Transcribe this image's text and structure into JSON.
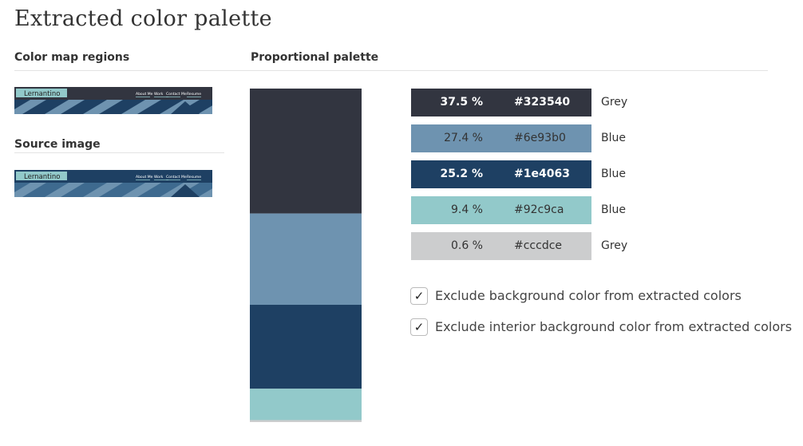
{
  "header": {
    "title": "Extracted color palette"
  },
  "left": {
    "regions_heading": "Color map regions",
    "source_heading": "Source image",
    "thumbnails": [
      {
        "brand": "Lernantino",
        "nav": [
          "About Me",
          "Work",
          "Contact Me",
          "Resume"
        ]
      },
      {
        "brand": "Lernantino",
        "nav": [
          "About Me",
          "Work",
          "Contact Me",
          "Resume"
        ]
      }
    ]
  },
  "palette": {
    "heading": "Proportional palette",
    "rows": [
      {
        "percent": 37.5,
        "percent_label": "37.5 %",
        "hex": "#323540",
        "name": "Grey"
      },
      {
        "percent": 27.4,
        "percent_label": "27.4 %",
        "hex": "#6e93b0",
        "name": "Blue"
      },
      {
        "percent": 25.2,
        "percent_label": "25.2 %",
        "hex": "#1e4063",
        "name": "Blue"
      },
      {
        "percent": 9.4,
        "percent_label": "9.4 %",
        "hex": "#92c9ca",
        "name": "Blue"
      },
      {
        "percent": 0.6,
        "percent_label": "0.6 %",
        "hex": "#cccdce",
        "name": "Grey"
      }
    ]
  },
  "options": [
    {
      "label": "Exclude background color from extracted colors",
      "checked": true
    },
    {
      "label": "Exclude interior background color from extracted colors",
      "checked": true
    }
  ]
}
